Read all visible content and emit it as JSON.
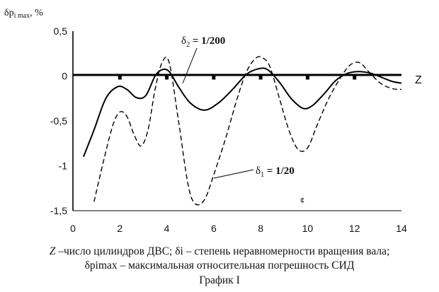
{
  "chart_data": {
    "type": "line",
    "ylabel": "δp i max, %",
    "x_axis_name": "Z",
    "xlim": [
      0,
      14
    ],
    "ylim": [
      -1.5,
      0.5
    ],
    "x_ticks": [
      "0",
      "2",
      "4",
      "6",
      "8",
      "10",
      "12",
      "14"
    ],
    "y_ticks": [
      "0,5",
      "0",
      "-0,5",
      "-1",
      "-1,5"
    ],
    "series": [
      {
        "name": "δ2 = 1/200",
        "style": "solid",
        "color": "#000000",
        "x": [
          0.45,
          0.9,
          1.4,
          1.9,
          2.3,
          2.7,
          3.1,
          3.5,
          3.8,
          4.1,
          4.5,
          5.0,
          5.6,
          6.2,
          6.8,
          7.4,
          7.9,
          8.3,
          8.8,
          9.3,
          9.8,
          10.2,
          10.7,
          11.2,
          11.7,
          12.2,
          12.7,
          13.2,
          13.6,
          14.0
        ],
        "y": [
          -0.9,
          -0.6,
          -0.25,
          -0.12,
          -0.15,
          -0.24,
          -0.22,
          0.0,
          0.07,
          0.05,
          -0.12,
          -0.3,
          -0.38,
          -0.3,
          -0.15,
          0.02,
          0.08,
          0.07,
          -0.07,
          -0.25,
          -0.36,
          -0.33,
          -0.2,
          -0.05,
          0.03,
          0.05,
          0.03,
          -0.02,
          -0.06,
          -0.08
        ]
      },
      {
        "name": "δ1 = 1/20",
        "style": "dashed",
        "color": "#000000",
        "x": [
          0.9,
          1.3,
          1.7,
          2.0,
          2.3,
          2.6,
          2.9,
          3.2,
          3.5,
          3.8,
          4.1,
          4.5,
          4.9,
          5.2,
          5.6,
          6.0,
          6.5,
          7.0,
          7.4,
          7.8,
          8.1,
          8.4,
          8.8,
          9.2,
          9.6,
          10.0,
          10.4,
          10.9,
          11.4,
          11.8,
          12.2,
          12.6,
          13.1,
          13.6,
          14.0
        ],
        "y": [
          -1.4,
          -0.95,
          -0.55,
          -0.4,
          -0.45,
          -0.65,
          -0.78,
          -0.6,
          -0.15,
          0.15,
          0.15,
          -0.5,
          -1.2,
          -1.42,
          -1.38,
          -1.1,
          -0.7,
          -0.25,
          0.05,
          0.2,
          0.2,
          0.1,
          -0.25,
          -0.6,
          -0.82,
          -0.8,
          -0.55,
          -0.25,
          -0.02,
          0.12,
          0.15,
          0.05,
          -0.08,
          -0.14,
          -0.15
        ]
      }
    ],
    "annotations": [
      {
        "text_main": "δ",
        "text_sub": "2",
        "text_rest": " = 1/200"
      },
      {
        "text_main": "δ",
        "text_sub": "1",
        "text_rest": " = 1/20"
      },
      {
        "text": "¢"
      }
    ]
  },
  "caption": {
    "line1": "Z –число цилиндров ДВС; δi – степень неравномерности вращения вала;",
    "line2": "δpimax – максимальная относительная погрешность СИД",
    "line3": "График I"
  }
}
